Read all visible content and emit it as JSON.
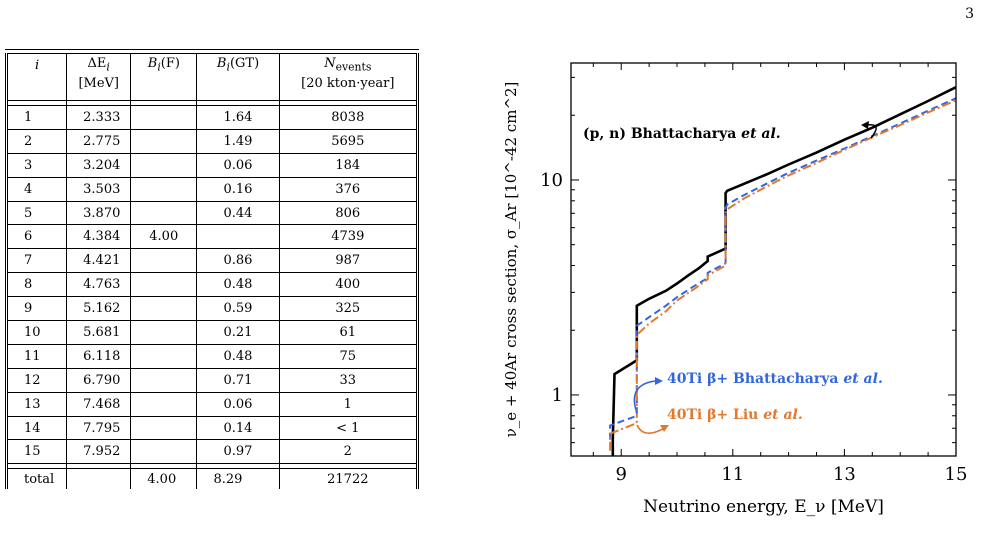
{
  "page_number": "3",
  "table": {
    "headers": {
      "i": "i",
      "delta_e": "ΔE",
      "delta_e_sub": "i",
      "delta_e_unit": "[MeV]",
      "bf": "B",
      "bf_sub": "i",
      "bf_arg": "(F)",
      "bgt": "B",
      "bgt_sub": "i",
      "bgt_arg": "(GT)",
      "nev": "N",
      "nev_sub": "events",
      "nev_unit": "[20 kton·year]"
    },
    "rows": [
      {
        "i": "1",
        "de": "2.333",
        "bf": "",
        "bgt": "1.64",
        "nev": "8038"
      },
      {
        "i": "2",
        "de": "2.775",
        "bf": "",
        "bgt": "1.49",
        "nev": "5695"
      },
      {
        "i": "3",
        "de": "3.204",
        "bf": "",
        "bgt": "0.06",
        "nev": "184"
      },
      {
        "i": "4",
        "de": "3.503",
        "bf": "",
        "bgt": "0.16",
        "nev": "376"
      },
      {
        "i": "5",
        "de": "3.870",
        "bf": "",
        "bgt": "0.44",
        "nev": "806"
      },
      {
        "i": "6",
        "de": "4.384",
        "bf": "4.00",
        "bgt": "",
        "nev": "4739"
      },
      {
        "i": "7",
        "de": "4.421",
        "bf": "",
        "bgt": "0.86",
        "nev": "987"
      },
      {
        "i": "8",
        "de": "4.763",
        "bf": "",
        "bgt": "0.48",
        "nev": "400"
      },
      {
        "i": "9",
        "de": "5.162",
        "bf": "",
        "bgt": "0.59",
        "nev": "325"
      },
      {
        "i": "10",
        "de": "5.681",
        "bf": "",
        "bgt": "0.21",
        "nev": "61"
      },
      {
        "i": "11",
        "de": "6.118",
        "bf": "",
        "bgt": "0.48",
        "nev": "75"
      },
      {
        "i": "12",
        "de": "6.790",
        "bf": "",
        "bgt": "0.71",
        "nev": "33"
      },
      {
        "i": "13",
        "de": "7.468",
        "bf": "",
        "bgt": "0.06",
        "nev": "1"
      },
      {
        "i": "14",
        "de": "7.795",
        "bf": "",
        "bgt": "0.14",
        "nev": "< 1"
      },
      {
        "i": "15",
        "de": "7.952",
        "bf": "",
        "bgt": "0.97",
        "nev": "2"
      }
    ],
    "total": {
      "label": "total",
      "de": "",
      "bf": "4.00",
      "bgt": "8.29",
      "nev": "21722"
    }
  },
  "chart_data": {
    "type": "line",
    "xlabel": "Neutrino energy, E_ν [MeV]",
    "ylabel": "ν_e + 40Ar cross section, σ_Ar [10^-42 cm^2]",
    "xlim": [
      8.1,
      15
    ],
    "ylim": [
      0.52,
      35
    ],
    "yscale": "log",
    "xticks": [
      9,
      11,
      13,
      15
    ],
    "yticks": [
      1,
      10
    ],
    "series": [
      {
        "name": "(p, n) Bhattacharya et al.",
        "color": "#000000",
        "style": "solid",
        "x": [
          8.85,
          8.85,
          8.88,
          9.28,
          9.28,
          9.5,
          9.8,
          10.0,
          10.2,
          10.4,
          10.55,
          10.55,
          10.87,
          10.87,
          10.9,
          11.2,
          11.6,
          12.0,
          12.5,
          13.0,
          13.5,
          14.0,
          14.5,
          15.0
        ],
        "y": [
          0.52,
          0.62,
          1.25,
          1.45,
          2.6,
          2.8,
          3.05,
          3.3,
          3.6,
          3.9,
          4.2,
          4.4,
          4.8,
          8.7,
          8.9,
          9.6,
          10.6,
          11.8,
          13.4,
          15.4,
          17.5,
          20.2,
          23.3,
          27.0
        ]
      },
      {
        "name": "40Ti β+ Bhattacharya et al.",
        "color": "#3366dd",
        "style": "dashed",
        "x": [
          8.8,
          8.8,
          9.28,
          9.28,
          9.5,
          9.8,
          10.0,
          10.3,
          10.55,
          10.55,
          10.87,
          10.87,
          10.9,
          11.2,
          11.6,
          12.0,
          12.5,
          13.0,
          13.5,
          14.0,
          14.5,
          15.0
        ],
        "y": [
          0.62,
          0.72,
          0.8,
          2.1,
          2.3,
          2.6,
          2.85,
          3.2,
          3.5,
          3.7,
          4.1,
          7.4,
          7.7,
          8.5,
          9.6,
          10.8,
          12.3,
          14.0,
          16.0,
          18.3,
          21.0,
          24.0
        ]
      },
      {
        "name": "40Ti β+ Liu et al.",
        "color": "#e07a30",
        "style": "dashdot",
        "x": [
          8.8,
          8.8,
          9.28,
          9.28,
          9.5,
          9.8,
          10.0,
          10.3,
          10.55,
          10.55,
          10.87,
          10.87,
          10.9,
          11.2,
          11.6,
          12.0,
          12.5,
          13.0,
          13.5,
          14.0,
          14.5,
          15.0
        ],
        "y": [
          0.55,
          0.66,
          0.74,
          1.9,
          2.15,
          2.45,
          2.75,
          3.1,
          3.45,
          3.6,
          4.0,
          7.0,
          7.3,
          8.2,
          9.3,
          10.5,
          12.0,
          13.8,
          15.8,
          18.0,
          20.6,
          23.5
        ]
      }
    ],
    "annotations": [
      {
        "text_main": "(p, n) Bhattacharya",
        "text_ital": "et al.",
        "color": "#000000"
      },
      {
        "text_main": "40Ti β+ Bhattacharya",
        "text_ital": "et al.",
        "color": "#3366dd"
      },
      {
        "text_main": "40Ti β+ Liu",
        "text_ital": "et al.",
        "color": "#e07a30"
      }
    ]
  }
}
